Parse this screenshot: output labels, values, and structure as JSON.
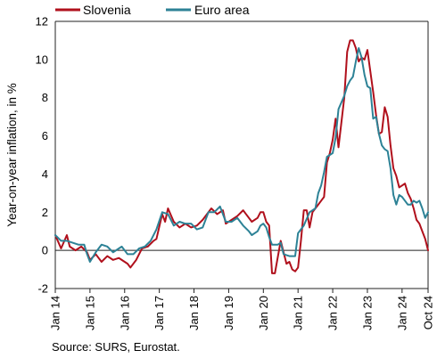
{
  "chart_data": {
    "type": "line",
    "title": "",
    "ylabel": "Year-on-year inflation, in %",
    "xlabel": "",
    "ylim": [
      -2,
      12
    ],
    "yticks": [
      -2,
      0,
      2,
      4,
      6,
      8,
      10,
      12
    ],
    "xlim": [
      "2014-01",
      "2024-10"
    ],
    "xticks": [
      "Jan 14",
      "Jan 15",
      "Jan 16",
      "Jan 17",
      "Jan 18",
      "Jan 19",
      "Jan 20",
      "Jan 21",
      "Jan 22",
      "Jan 23",
      "Jan 24",
      "Oct 24"
    ],
    "grid": false,
    "legend_position": "top",
    "colors": {
      "Slovenia": "#b0101c",
      "Euro area": "#2d8296"
    },
    "series": [
      {
        "name": "Slovenia",
        "points": [
          [
            "2014-01",
            0.8
          ],
          [
            "2014-03",
            0.1
          ],
          [
            "2014-05",
            0.8
          ],
          [
            "2014-06",
            0.2
          ],
          [
            "2014-08",
            0.0
          ],
          [
            "2014-10",
            0.2
          ],
          [
            "2014-12",
            -0.1
          ],
          [
            "2015-01",
            -0.5
          ],
          [
            "2015-03",
            -0.2
          ],
          [
            "2015-05",
            -0.6
          ],
          [
            "2015-07",
            -0.3
          ],
          [
            "2015-09",
            -0.5
          ],
          [
            "2015-11",
            -0.4
          ],
          [
            "2015-12",
            -0.5
          ],
          [
            "2016-02",
            -0.7
          ],
          [
            "2016-03",
            -0.9
          ],
          [
            "2016-05",
            -0.5
          ],
          [
            "2016-07",
            0.1
          ],
          [
            "2016-09",
            0.2
          ],
          [
            "2016-11",
            0.5
          ],
          [
            "2016-12",
            0.6
          ],
          [
            "2017-02",
            1.9
          ],
          [
            "2017-03",
            1.5
          ],
          [
            "2017-04",
            2.2
          ],
          [
            "2017-06",
            1.5
          ],
          [
            "2017-08",
            1.2
          ],
          [
            "2017-10",
            1.4
          ],
          [
            "2017-12",
            1.2
          ],
          [
            "2018-02",
            1.3
          ],
          [
            "2018-04",
            1.6
          ],
          [
            "2018-06",
            2.0
          ],
          [
            "2018-07",
            2.2
          ],
          [
            "2018-09",
            1.9
          ],
          [
            "2018-11",
            2.1
          ],
          [
            "2018-12",
            1.4
          ],
          [
            "2019-02",
            1.6
          ],
          [
            "2019-04",
            1.8
          ],
          [
            "2019-06",
            2.1
          ],
          [
            "2019-07",
            1.9
          ],
          [
            "2019-09",
            1.5
          ],
          [
            "2019-11",
            1.7
          ],
          [
            "2019-12",
            2.0
          ],
          [
            "2020-01",
            2.0
          ],
          [
            "2020-02",
            1.5
          ],
          [
            "2020-03",
            1.3
          ],
          [
            "2020-04",
            -1.2
          ],
          [
            "2020-05",
            -1.2
          ],
          [
            "2020-07",
            0.5
          ],
          [
            "2020-09",
            -0.7
          ],
          [
            "2020-10",
            -0.6
          ],
          [
            "2020-11",
            -1.0
          ],
          [
            "2020-12",
            -1.1
          ],
          [
            "2021-01",
            -0.9
          ],
          [
            "2021-02",
            0.5
          ],
          [
            "2021-03",
            2.1
          ],
          [
            "2021-04",
            2.1
          ],
          [
            "2021-05",
            1.2
          ],
          [
            "2021-06",
            2.0
          ],
          [
            "2021-08",
            2.4
          ],
          [
            "2021-09",
            2.6
          ],
          [
            "2021-10",
            2.8
          ],
          [
            "2021-11",
            4.6
          ],
          [
            "2021-12",
            5.1
          ],
          [
            "2022-01",
            5.8
          ],
          [
            "2022-02",
            6.9
          ],
          [
            "2022-03",
            5.4
          ],
          [
            "2022-05",
            8.0
          ],
          [
            "2022-06",
            10.4
          ],
          [
            "2022-07",
            11.0
          ],
          [
            "2022-08",
            11.0
          ],
          [
            "2022-09",
            10.6
          ],
          [
            "2022-10",
            9.9
          ],
          [
            "2022-11",
            10.1
          ],
          [
            "2022-12",
            10.0
          ],
          [
            "2023-01",
            10.5
          ],
          [
            "2023-02",
            9.4
          ],
          [
            "2023-03",
            8.3
          ],
          [
            "2023-04",
            7.1
          ],
          [
            "2023-05",
            6.1
          ],
          [
            "2023-06",
            6.2
          ],
          [
            "2023-07",
            7.5
          ],
          [
            "2023-08",
            7.0
          ],
          [
            "2023-09",
            5.5
          ],
          [
            "2023-10",
            4.3
          ],
          [
            "2023-11",
            3.9
          ],
          [
            "2023-12",
            3.3
          ],
          [
            "2024-01",
            3.4
          ],
          [
            "2024-02",
            3.5
          ],
          [
            "2024-03",
            3.0
          ],
          [
            "2024-04",
            2.7
          ],
          [
            "2024-05",
            2.2
          ],
          [
            "2024-06",
            1.6
          ],
          [
            "2024-07",
            1.4
          ],
          [
            "2024-08",
            1.0
          ],
          [
            "2024-09",
            0.6
          ],
          [
            "2024-10",
            0.0
          ]
        ]
      },
      {
        "name": "Euro area",
        "points": [
          [
            "2014-01",
            0.8
          ],
          [
            "2014-03",
            0.5
          ],
          [
            "2014-05",
            0.5
          ],
          [
            "2014-07",
            0.4
          ],
          [
            "2014-09",
            0.3
          ],
          [
            "2014-11",
            0.3
          ],
          [
            "2014-12",
            -0.2
          ],
          [
            "2015-01",
            -0.6
          ],
          [
            "2015-03",
            -0.1
          ],
          [
            "2015-05",
            0.3
          ],
          [
            "2015-07",
            0.2
          ],
          [
            "2015-09",
            -0.1
          ],
          [
            "2015-11",
            0.1
          ],
          [
            "2015-12",
            0.2
          ],
          [
            "2016-02",
            -0.2
          ],
          [
            "2016-04",
            -0.2
          ],
          [
            "2016-06",
            0.1
          ],
          [
            "2016-08",
            0.2
          ],
          [
            "2016-10",
            0.5
          ],
          [
            "2016-12",
            1.1
          ],
          [
            "2017-02",
            2.0
          ],
          [
            "2017-04",
            1.9
          ],
          [
            "2017-06",
            1.3
          ],
          [
            "2017-08",
            1.5
          ],
          [
            "2017-10",
            1.4
          ],
          [
            "2017-12",
            1.4
          ],
          [
            "2018-02",
            1.1
          ],
          [
            "2018-04",
            1.2
          ],
          [
            "2018-06",
            2.0
          ],
          [
            "2018-08",
            2.0
          ],
          [
            "2018-10",
            2.3
          ],
          [
            "2018-12",
            1.5
          ],
          [
            "2019-02",
            1.5
          ],
          [
            "2019-04",
            1.7
          ],
          [
            "2019-06",
            1.3
          ],
          [
            "2019-08",
            1.0
          ],
          [
            "2019-09",
            0.8
          ],
          [
            "2019-11",
            1.0
          ],
          [
            "2019-12",
            1.3
          ],
          [
            "2020-01",
            1.4
          ],
          [
            "2020-02",
            1.2
          ],
          [
            "2020-03",
            0.7
          ],
          [
            "2020-04",
            0.3
          ],
          [
            "2020-06",
            0.3
          ],
          [
            "2020-07",
            0.4
          ],
          [
            "2020-08",
            -0.2
          ],
          [
            "2020-10",
            -0.3
          ],
          [
            "2020-12",
            -0.3
          ],
          [
            "2021-01",
            0.9
          ],
          [
            "2021-03",
            1.3
          ],
          [
            "2021-05",
            2.0
          ],
          [
            "2021-07",
            2.2
          ],
          [
            "2021-08",
            3.0
          ],
          [
            "2021-09",
            3.4
          ],
          [
            "2021-10",
            4.1
          ],
          [
            "2021-11",
            4.9
          ],
          [
            "2021-12",
            5.0
          ],
          [
            "2022-01",
            5.1
          ],
          [
            "2022-02",
            5.9
          ],
          [
            "2022-03",
            7.4
          ],
          [
            "2022-05",
            8.1
          ],
          [
            "2022-06",
            8.6
          ],
          [
            "2022-07",
            8.9
          ],
          [
            "2022-08",
            9.1
          ],
          [
            "2022-09",
            9.9
          ],
          [
            "2022-10",
            10.6
          ],
          [
            "2022-11",
            10.1
          ],
          [
            "2022-12",
            9.2
          ],
          [
            "2023-01",
            8.6
          ],
          [
            "2023-02",
            8.5
          ],
          [
            "2023-03",
            6.9
          ],
          [
            "2023-04",
            7.0
          ],
          [
            "2023-05",
            6.1
          ],
          [
            "2023-06",
            5.5
          ],
          [
            "2023-07",
            5.3
          ],
          [
            "2023-08",
            5.2
          ],
          [
            "2023-09",
            4.3
          ],
          [
            "2023-10",
            2.9
          ],
          [
            "2023-11",
            2.4
          ],
          [
            "2023-12",
            2.9
          ],
          [
            "2024-01",
            2.8
          ],
          [
            "2024-02",
            2.6
          ],
          [
            "2024-03",
            2.4
          ],
          [
            "2024-04",
            2.4
          ],
          [
            "2024-05",
            2.6
          ],
          [
            "2024-06",
            2.5
          ],
          [
            "2024-07",
            2.6
          ],
          [
            "2024-08",
            2.2
          ],
          [
            "2024-09",
            1.7
          ],
          [
            "2024-10",
            2.0
          ]
        ]
      }
    ]
  },
  "source_text": "Source: SURS, Eurostat."
}
